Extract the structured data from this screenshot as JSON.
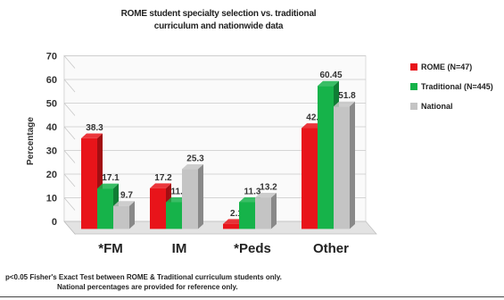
{
  "title_line1": "ROME student specialty selection vs. traditional",
  "title_line2": "curriculum and nationwide data",
  "footnote_line1": "p<0.05 Fisher's Exact Test between ROME & Traditional curriculum students only.",
  "footnote_line2": "National percentages are provided for reference only.",
  "chart_data": {
    "type": "bar",
    "title": "ROME student specialty selection vs. traditional curriculum and nationwide data",
    "ylabel": "Percentage",
    "xlabel": "",
    "ylim": [
      0,
      70
    ],
    "yticks": [
      0,
      10,
      20,
      30,
      40,
      50,
      60,
      70
    ],
    "grid": true,
    "legend_position": "right",
    "categories": [
      "*FM",
      "IM",
      "*Peds",
      "Other"
    ],
    "series": [
      {
        "name": "ROME (N=47)",
        "color": "#e8141a",
        "values": [
          38.3,
          17.2,
          2.1,
          42.6
        ],
        "labels": [
          "38.3",
          "17.2",
          "2.1",
          "42.6"
        ]
      },
      {
        "name": "Traditional (N=445)",
        "color": "#16b34a",
        "values": [
          17.1,
          11.3,
          11.3,
          60.45
        ],
        "labels": [
          "17.1",
          "11.3",
          "11.3",
          "60.45"
        ]
      },
      {
        "name": "National",
        "color": "#c4c4c4",
        "values": [
          9.7,
          25.3,
          13.2,
          51.8
        ],
        "labels": [
          "9.7",
          "25.3",
          "13.2",
          "51.8"
        ]
      }
    ]
  }
}
